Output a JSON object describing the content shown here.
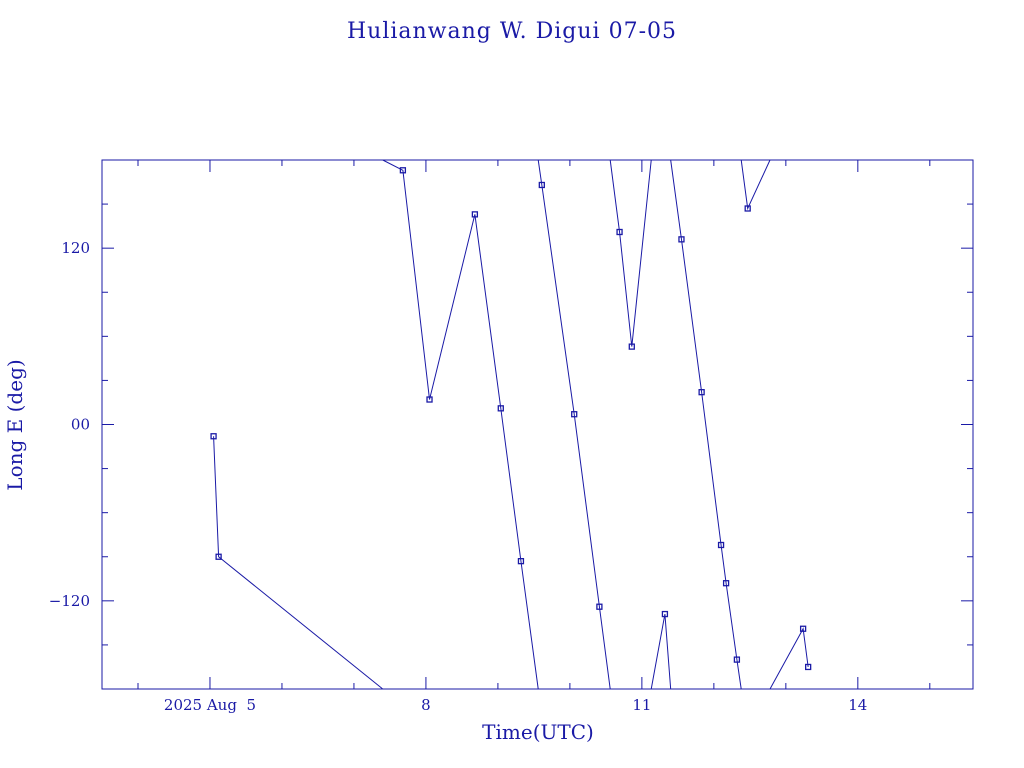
{
  "colors": {
    "ink": "#1a1aa6",
    "background": "#ffffff"
  },
  "chart_data": {
    "type": "line",
    "title": "Hulianwang W. Digui 07-05",
    "xlabel": "Time(UTC)",
    "ylabel": "Long E (deg)",
    "xlim": [
      3.5,
      15.6
    ],
    "ylim": [
      -180,
      180
    ],
    "x_ticks": [
      {
        "value": 5,
        "label": "2025 Aug  5"
      },
      {
        "value": 8,
        "label": "8"
      },
      {
        "value": 11,
        "label": "11"
      },
      {
        "value": 14,
        "label": "14"
      }
    ],
    "y_ticks": [
      {
        "value": -120,
        "label": "−120"
      },
      {
        "value": 0,
        "label": "00"
      },
      {
        "value": 120,
        "label": "120"
      }
    ],
    "grid": false,
    "legend": "none",
    "series": [
      {
        "segments": [
          [
            [
              5.05,
              -8
            ],
            [
              5.12,
              -90
            ],
            [
              7.4,
              -180
            ]
          ],
          [
            [
              7.4,
              180
            ],
            [
              7.68,
              173
            ],
            [
              8.05,
              17
            ],
            [
              8.68,
              143
            ],
            [
              9.04,
              11
            ],
            [
              9.32,
              -93
            ],
            [
              9.56,
              -180
            ]
          ],
          [
            [
              9.56,
              180
            ],
            [
              9.61,
              163
            ],
            [
              10.06,
              7
            ],
            [
              10.41,
              -124
            ],
            [
              10.56,
              -180
            ]
          ],
          [
            [
              10.56,
              180
            ],
            [
              10.69,
              131
            ],
            [
              10.86,
              53
            ],
            [
              11.13,
              180
            ]
          ],
          [
            [
              11.13,
              -180
            ],
            [
              11.32,
              -129
            ],
            [
              11.4,
              -180
            ]
          ],
          [
            [
              11.4,
              180
            ],
            [
              11.55,
              126
            ],
            [
              11.83,
              22
            ],
            [
              12.1,
              -82
            ],
            [
              12.17,
              -108
            ],
            [
              12.32,
              -160
            ],
            [
              12.38,
              -180
            ]
          ],
          [
            [
              12.38,
              180
            ],
            [
              12.47,
              147
            ],
            [
              12.78,
              180
            ]
          ],
          [
            [
              12.78,
              -180
            ],
            [
              13.24,
              -139
            ],
            [
              13.31,
              -165
            ]
          ]
        ],
        "markers": [
          [
            5.05,
            -8
          ],
          [
            5.12,
            -90
          ],
          [
            7.68,
            173
          ],
          [
            8.05,
            17
          ],
          [
            8.68,
            143
          ],
          [
            9.04,
            11
          ],
          [
            9.32,
            -93
          ],
          [
            9.61,
            163
          ],
          [
            10.06,
            7
          ],
          [
            10.41,
            -124
          ],
          [
            10.69,
            131
          ],
          [
            10.86,
            53
          ],
          [
            11.32,
            -129
          ],
          [
            11.55,
            126
          ],
          [
            11.83,
            22
          ],
          [
            12.1,
            -82
          ],
          [
            12.17,
            -108
          ],
          [
            12.32,
            -160
          ],
          [
            12.47,
            147
          ],
          [
            13.24,
            -139
          ],
          [
            13.31,
            -165
          ]
        ]
      }
    ]
  }
}
